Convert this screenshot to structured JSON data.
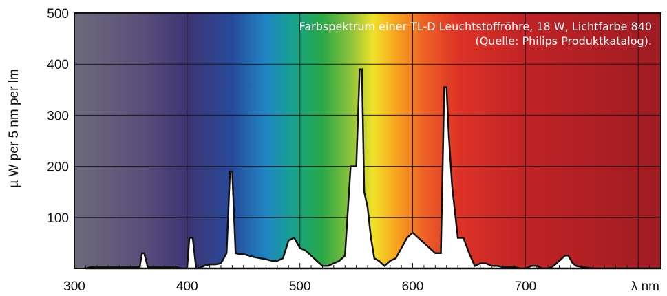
{
  "chart_data": {
    "type": "area",
    "title": [
      "Farbspektrum einer TL-D Leuchtstoffröhre, 18 W, Lichtfarbe 840",
      "(Quelle: Philips Produktkatalog)."
    ],
    "xlabel": "λ nm",
    "ylabel": "µ W per 5 nm per lm",
    "xlim": [
      300,
      820
    ],
    "ylim": [
      0,
      500
    ],
    "x_ticks": [
      300,
      400,
      500,
      600,
      700
    ],
    "y_ticks": [
      100,
      200,
      300,
      400,
      500
    ],
    "grid": true,
    "colors": {
      "frame": "#111111",
      "grid": "#1a1a1a",
      "spectrum_fill": "#ffffff",
      "spectrum_edge": "#111111",
      "title_text": "#ffffff"
    },
    "background_spectrum_stops": [
      {
        "x": 300,
        "color": "#6d6a7a"
      },
      {
        "x": 360,
        "color": "#5a4f7a"
      },
      {
        "x": 400,
        "color": "#3e3574"
      },
      {
        "x": 440,
        "color": "#284a9a"
      },
      {
        "x": 470,
        "color": "#1f86c4"
      },
      {
        "x": 495,
        "color": "#17a38a"
      },
      {
        "x": 520,
        "color": "#2aa846"
      },
      {
        "x": 545,
        "color": "#8dc23a"
      },
      {
        "x": 565,
        "color": "#f0e22a"
      },
      {
        "x": 585,
        "color": "#f7a51f"
      },
      {
        "x": 610,
        "color": "#ee6127"
      },
      {
        "x": 640,
        "color": "#dd3326"
      },
      {
        "x": 700,
        "color": "#c02326"
      },
      {
        "x": 820,
        "color": "#9e1c22"
      }
    ],
    "series": [
      {
        "x": [
          310,
          315,
          320,
          330,
          340,
          350,
          355,
          358,
          360,
          362,
          365,
          370,
          380,
          390,
          395,
          400,
          402,
          405,
          408,
          410,
          415,
          420,
          425,
          430,
          435,
          438,
          440,
          443,
          446,
          450,
          455,
          460,
          465,
          470,
          475,
          480,
          485,
          490,
          495,
          500,
          505,
          510,
          515,
          520,
          525,
          530,
          535,
          540,
          545,
          550,
          553,
          555,
          557,
          560,
          563,
          566,
          570,
          575,
          580,
          585,
          590,
          595,
          600,
          605,
          610,
          615,
          620,
          625,
          628,
          630,
          632,
          635,
          640,
          645,
          650,
          655,
          660,
          665,
          670,
          675,
          680,
          685,
          690,
          695,
          700,
          705,
          710,
          715,
          720,
          725,
          730,
          735,
          738,
          742,
          745,
          750,
          760,
          780,
          800,
          820
        ],
        "y": [
          0,
          3,
          3,
          3,
          3,
          3,
          3,
          3,
          30,
          30,
          3,
          3,
          3,
          3,
          0,
          0,
          60,
          60,
          0,
          0,
          5,
          8,
          8,
          10,
          30,
          190,
          190,
          30,
          28,
          28,
          25,
          22,
          20,
          18,
          15,
          15,
          20,
          55,
          60,
          40,
          35,
          25,
          15,
          5,
          5,
          10,
          15,
          25,
          200,
          200,
          390,
          390,
          150,
          120,
          60,
          20,
          15,
          5,
          15,
          20,
          40,
          60,
          70,
          60,
          50,
          40,
          30,
          30,
          355,
          355,
          260,
          160,
          60,
          60,
          30,
          5,
          10,
          10,
          5,
          5,
          3,
          3,
          3,
          0,
          0,
          5,
          5,
          0,
          0,
          5,
          15,
          25,
          25,
          10,
          5,
          3,
          0,
          0,
          0,
          0
        ]
      }
    ]
  }
}
